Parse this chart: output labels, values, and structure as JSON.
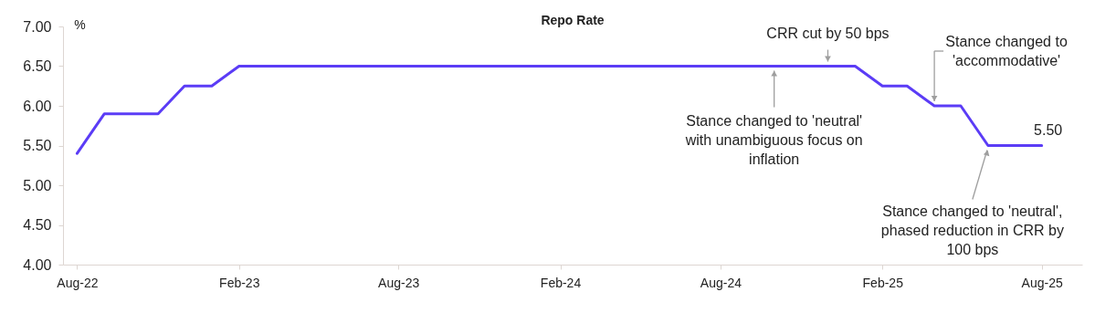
{
  "chart_data": {
    "type": "line",
    "title": "Repo Rate",
    "ylabel": "%",
    "x": [
      "2022-08",
      "2022-09",
      "2022-10",
      "2022-11",
      "2022-12",
      "2023-01",
      "2023-02",
      "2023-03",
      "2023-04",
      "2023-05",
      "2023-06",
      "2023-07",
      "2023-08",
      "2023-09",
      "2023-10",
      "2023-11",
      "2023-12",
      "2024-01",
      "2024-02",
      "2024-03",
      "2024-04",
      "2024-05",
      "2024-06",
      "2024-07",
      "2024-08",
      "2024-09",
      "2024-10",
      "2024-11",
      "2024-12",
      "2025-01",
      "2025-02",
      "2025-03",
      "2025-04",
      "2025-05",
      "2025-06",
      "2025-07",
      "2025-08"
    ],
    "series": [
      {
        "color": "#5b3cf6",
        "values": [
          5.4,
          5.9,
          5.9,
          5.9,
          6.25,
          6.25,
          6.5,
          6.5,
          6.5,
          6.5,
          6.5,
          6.5,
          6.5,
          6.5,
          6.5,
          6.5,
          6.5,
          6.5,
          6.5,
          6.5,
          6.5,
          6.5,
          6.5,
          6.5,
          6.5,
          6.5,
          6.5,
          6.5,
          6.5,
          6.5,
          6.25,
          6.25,
          6.0,
          6.0,
          5.5,
          5.5,
          5.5
        ],
        "value_labels": [
          null,
          null,
          null,
          null,
          null,
          null,
          null,
          null,
          null,
          null,
          null,
          null,
          null,
          null,
          null,
          null,
          null,
          null,
          null,
          null,
          null,
          null,
          null,
          null,
          null,
          null,
          null,
          null,
          null,
          null,
          null,
          null,
          null,
          null,
          null,
          null,
          "5.50"
        ]
      }
    ],
    "xlim": [
      "2022-07-16",
      "2025-09-16"
    ],
    "xticks": [
      {
        "value": "2022-08",
        "label": "Aug-22"
      },
      {
        "value": "2023-02",
        "label": "Feb-23"
      },
      {
        "value": "2023-08",
        "label": "Aug-23"
      },
      {
        "value": "2024-02",
        "label": "Feb-24"
      },
      {
        "value": "2024-08",
        "label": "Aug-24"
      },
      {
        "value": "2025-02",
        "label": "Feb-25"
      },
      {
        "value": "2025-08",
        "label": "Aug-25"
      }
    ],
    "ylim": [
      4,
      7
    ],
    "yticks": [
      {
        "value": 4,
        "label": "4.00"
      },
      {
        "value": 4.5,
        "label": "4.50"
      },
      {
        "value": 5,
        "label": "5.00"
      },
      {
        "value": 5.5,
        "label": "5.50"
      },
      {
        "value": 6,
        "label": "6.00"
      },
      {
        "value": 6.5,
        "label": "6.50"
      },
      {
        "value": 7,
        "label": "7.00"
      }
    ],
    "grid": false,
    "annotations": [
      {
        "text": "Stance changed to 'neutral' with unambiguous focus on inflation",
        "x": "2024-10",
        "y": 6.5
      },
      {
        "text": "CRR cut by 50 bps",
        "x": "2024-12",
        "y": 6.5
      },
      {
        "text": "Stance changed to 'accommodative'",
        "x": "2025-04",
        "y": 6.0
      },
      {
        "text": "Stance changed to 'neutral', phased reduction in CRR by 100 bps",
        "x": "2025-06",
        "y": 5.5
      }
    ]
  }
}
